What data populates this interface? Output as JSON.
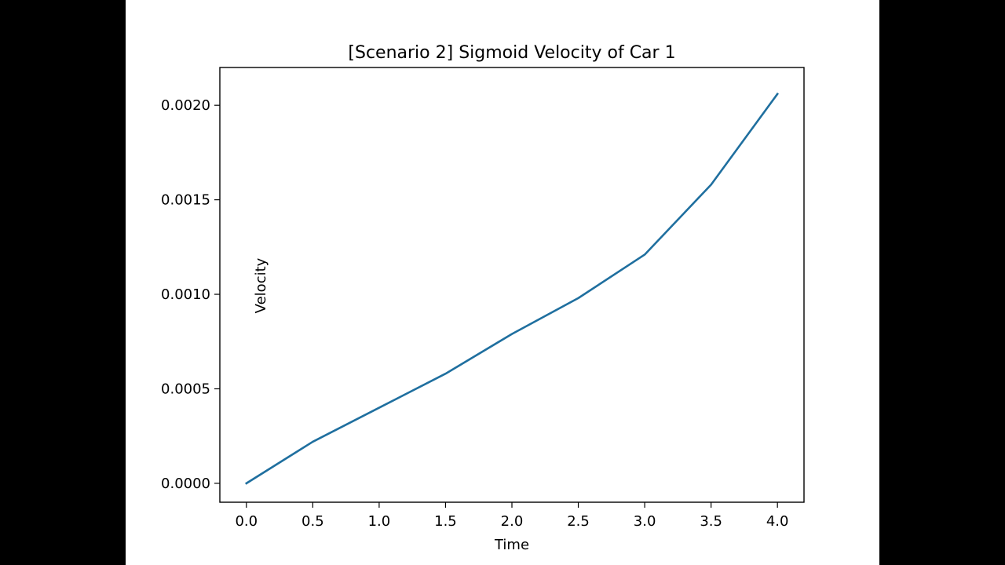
{
  "chart_data": {
    "type": "line",
    "title": "[Scenario 2] Sigmoid Velocity of Car 1",
    "xlabel": "Time",
    "ylabel": "Velocity",
    "xlim": [
      -0.2,
      4.2
    ],
    "ylim": [
      -0.0001,
      0.0022
    ],
    "x_ticks": [
      {
        "value": 0.0,
        "label": "0.0"
      },
      {
        "value": 0.5,
        "label": "0.5"
      },
      {
        "value": 1.0,
        "label": "1.0"
      },
      {
        "value": 1.5,
        "label": "1.5"
      },
      {
        "value": 2.0,
        "label": "2.0"
      },
      {
        "value": 2.5,
        "label": "2.5"
      },
      {
        "value": 3.0,
        "label": "3.0"
      },
      {
        "value": 3.5,
        "label": "3.5"
      },
      {
        "value": 4.0,
        "label": "4.0"
      }
    ],
    "y_ticks": [
      {
        "value": 0.0,
        "label": "0.0000"
      },
      {
        "value": 0.0005,
        "label": "0.0005"
      },
      {
        "value": 0.001,
        "label": "0.0010"
      },
      {
        "value": 0.0015,
        "label": "0.0015"
      },
      {
        "value": 0.002,
        "label": "0.0020"
      }
    ],
    "grid": false,
    "series": [
      {
        "color": "#1f6f9f",
        "x": [
          0.0,
          0.5,
          1.0,
          1.5,
          2.0,
          2.5,
          3.0,
          3.5,
          4.0
        ],
        "y": [
          0.0,
          0.00022,
          0.0004,
          0.00058,
          0.00079,
          0.00098,
          0.00121,
          0.00158,
          0.00206
        ]
      }
    ]
  }
}
